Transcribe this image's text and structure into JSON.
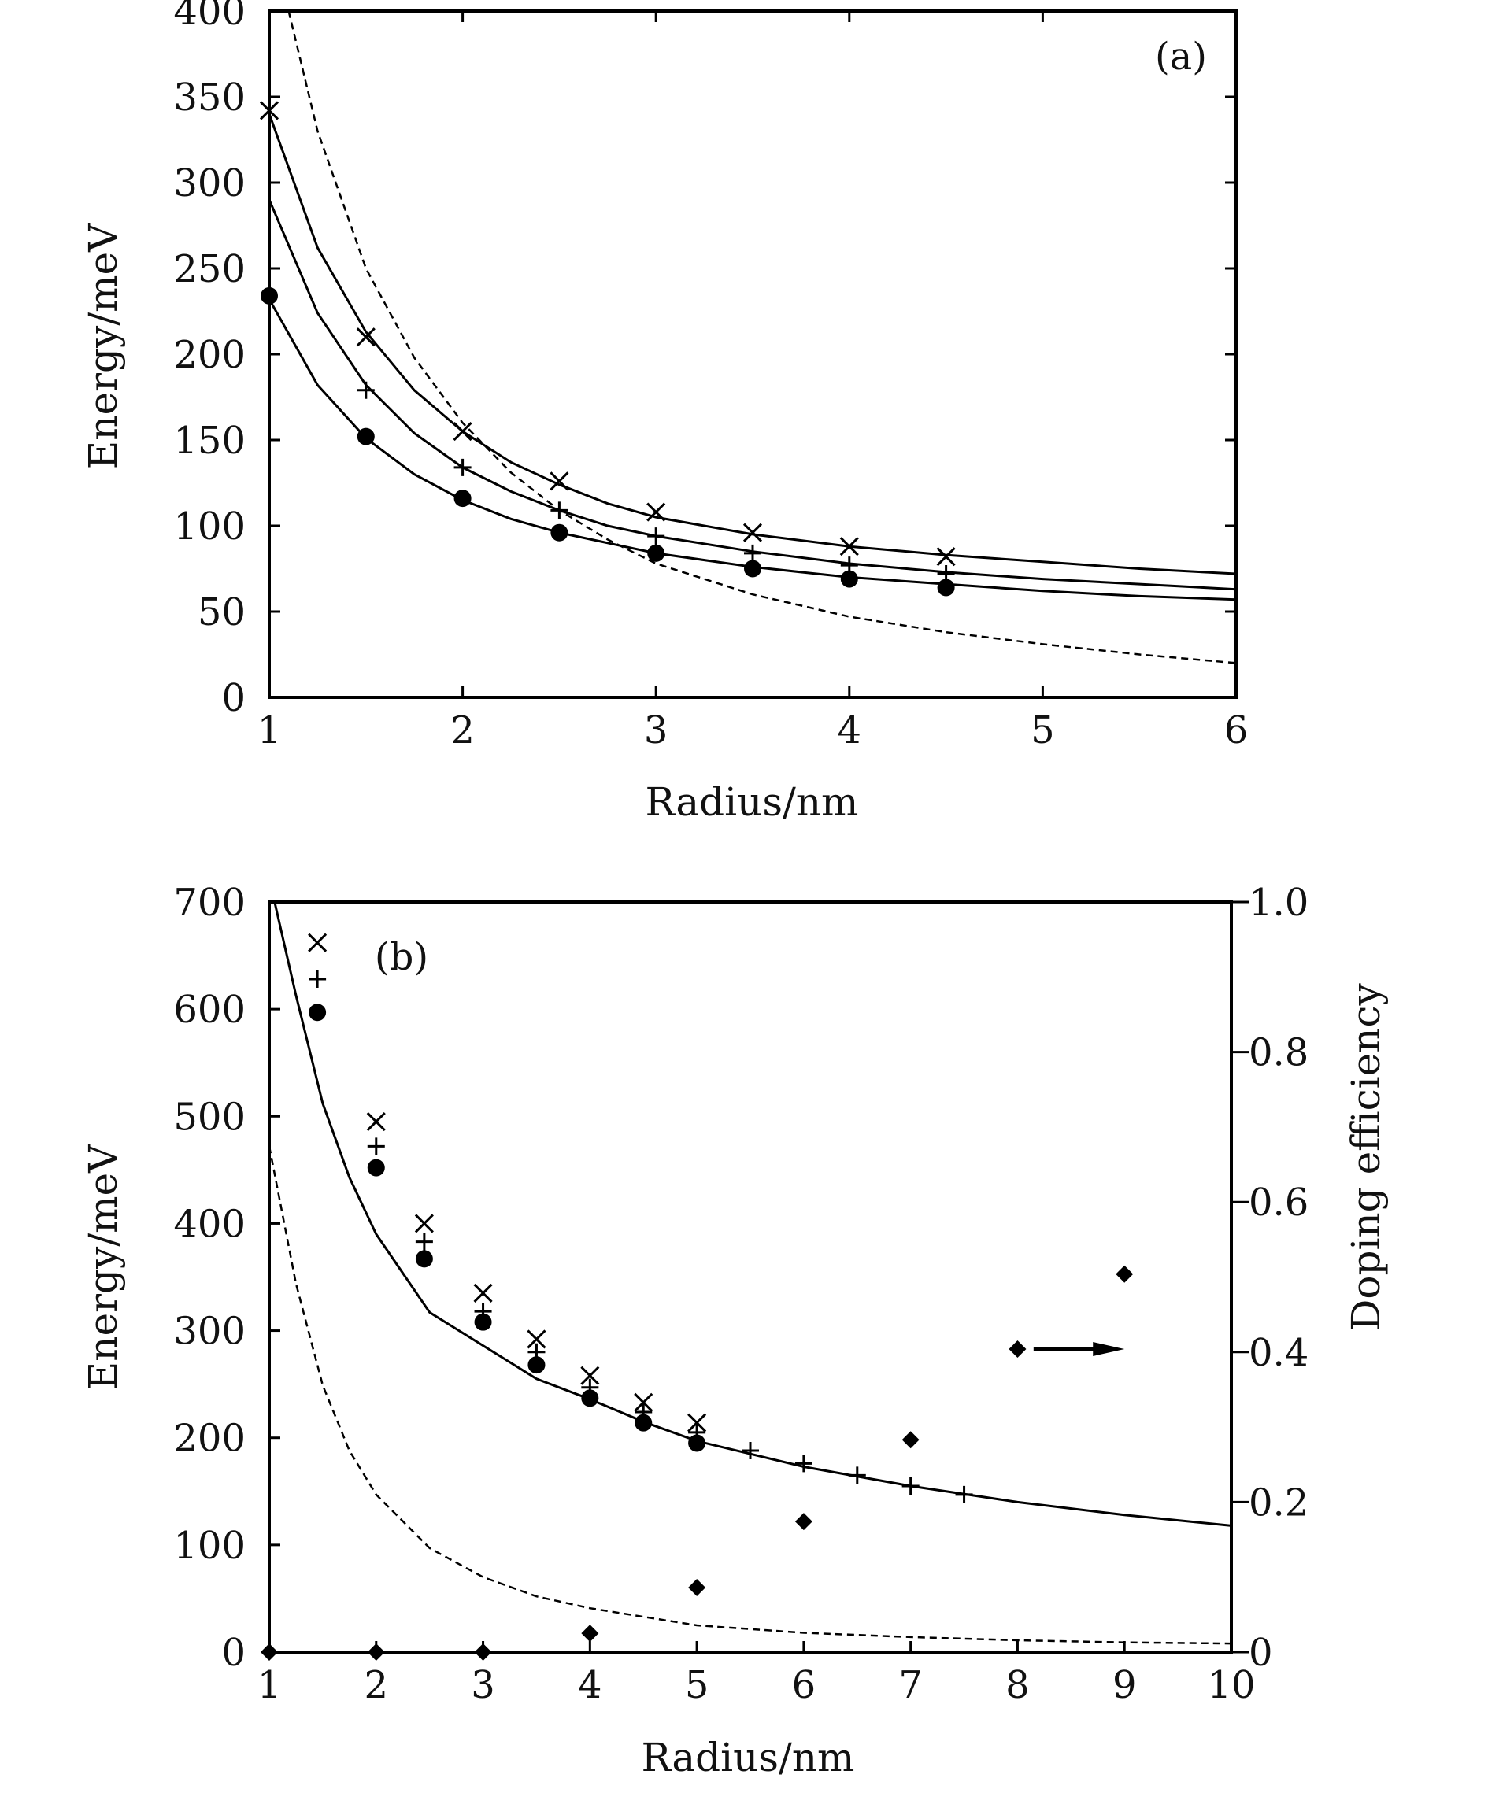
{
  "chart_data": [
    {
      "type": "scatter",
      "panel_label": "(a)",
      "xlabel": "Radius/nm",
      "ylabel": "Energy/meV",
      "xlim": [
        1,
        6
      ],
      "ylim": [
        0,
        400
      ],
      "xticks": [
        1,
        2,
        3,
        4,
        5,
        6
      ],
      "yticks": [
        0,
        50,
        100,
        150,
        200,
        250,
        300,
        350,
        400
      ],
      "grid": false,
      "series": [
        {
          "marker": "x",
          "x": [
            1.0,
            1.5,
            2.0,
            2.5,
            3.0,
            3.5,
            4.0,
            4.5
          ],
          "y": [
            342,
            210,
            155,
            126,
            108,
            96,
            88,
            82
          ]
        },
        {
          "marker": "plus",
          "x": [
            1.5,
            2.0,
            2.5,
            3.0,
            3.5,
            4.0,
            4.5
          ],
          "y": [
            179,
            134,
            109,
            94,
            84,
            77,
            72
          ]
        },
        {
          "marker": "dot",
          "x": [
            1.0,
            1.5,
            2.0,
            2.5,
            3.0,
            3.5,
            4.0,
            4.5
          ],
          "y": [
            234,
            152,
            116,
            96,
            84,
            75,
            69,
            64
          ]
        },
        {
          "style": "solid",
          "curve": [
            [
              1.0,
              340
            ],
            [
              1.25,
              262
            ],
            [
              1.5,
              213
            ],
            [
              1.75,
              179
            ],
            [
              2.0,
              155
            ],
            [
              2.25,
              137
            ],
            [
              2.5,
              124
            ],
            [
              2.75,
              113
            ],
            [
              3.0,
              105
            ],
            [
              3.5,
              95
            ],
            [
              4.0,
              88
            ],
            [
              4.5,
              83
            ],
            [
              5.0,
              79
            ],
            [
              5.5,
              75
            ],
            [
              6.0,
              72
            ]
          ]
        },
        {
          "style": "solid",
          "curve": [
            [
              1.0,
              290
            ],
            [
              1.25,
              224
            ],
            [
              1.5,
              182
            ],
            [
              1.75,
              154
            ],
            [
              2.0,
              134
            ],
            [
              2.25,
              120
            ],
            [
              2.5,
              109
            ],
            [
              2.75,
              100
            ],
            [
              3.0,
              94
            ],
            [
              3.5,
              85
            ],
            [
              4.0,
              78
            ],
            [
              4.5,
              73
            ],
            [
              5.0,
              69
            ],
            [
              5.5,
              66
            ],
            [
              6.0,
              63
            ]
          ]
        },
        {
          "style": "solid",
          "curve": [
            [
              1.0,
              232
            ],
            [
              1.25,
              182
            ],
            [
              1.5,
              151
            ],
            [
              1.75,
              130
            ],
            [
              2.0,
              115
            ],
            [
              2.25,
              104
            ],
            [
              2.5,
              96
            ],
            [
              2.75,
              90
            ],
            [
              3.0,
              84
            ],
            [
              3.5,
              76
            ],
            [
              4.0,
              70
            ],
            [
              4.5,
              66
            ],
            [
              5.0,
              62
            ],
            [
              5.5,
              59
            ],
            [
              6.0,
              57
            ]
          ]
        },
        {
          "style": "dashed",
          "curve": [
            [
              1.1,
              400
            ],
            [
              1.25,
              330
            ],
            [
              1.5,
              250
            ],
            [
              1.75,
              198
            ],
            [
              2.0,
              160
            ],
            [
              2.25,
              131
            ],
            [
              2.5,
              109
            ],
            [
              2.75,
              92
            ],
            [
              3.0,
              78
            ],
            [
              3.5,
              60
            ],
            [
              4.0,
              47
            ],
            [
              4.5,
              38
            ],
            [
              5.0,
              31
            ],
            [
              5.5,
              25
            ],
            [
              6.0,
              20
            ]
          ]
        }
      ]
    },
    {
      "type": "scatter",
      "panel_label": "(b)",
      "xlabel": "Radius/nm",
      "ylabel": "Energy/meV",
      "y2label": "Doping efficiency",
      "xlim": [
        1,
        10
      ],
      "ylim": [
        0,
        700
      ],
      "y2lim": [
        0,
        1.0
      ],
      "xticks": [
        1,
        2,
        3,
        4,
        5,
        6,
        7,
        8,
        9,
        10
      ],
      "yticks": [
        0,
        100,
        200,
        300,
        400,
        500,
        600,
        700
      ],
      "y2ticks": [
        "0",
        "0.2",
        "0.4",
        "0.6",
        "0.8",
        "1.0"
      ],
      "grid": false,
      "series": [
        {
          "marker": "x",
          "x": [
            1.45,
            2.0,
            2.45,
            3.0,
            3.5,
            4.0,
            4.5,
            5.0
          ],
          "y": [
            662,
            495,
            400,
            335,
            292,
            258,
            233,
            214
          ]
        },
        {
          "marker": "plus",
          "x": [
            1.45,
            2.0,
            2.45,
            3.0,
            3.5,
            4.0,
            4.5,
            5.0,
            5.5,
            6.0,
            6.5,
            7.0,
            7.5
          ],
          "y": [
            628,
            472,
            383,
            318,
            280,
            247,
            224,
            205,
            188,
            176,
            165,
            155,
            147
          ]
        },
        {
          "marker": "dot",
          "x": [
            1.45,
            2.0,
            2.45,
            3.0,
            3.5,
            4.0,
            4.5,
            5.0
          ],
          "y": [
            597,
            452,
            367,
            308,
            268,
            237,
            214,
            195
          ]
        },
        {
          "marker": "diamond",
          "axis": "right",
          "x": [
            1.0,
            2.0,
            3.0,
            4.0,
            5.0,
            6.0,
            7.0,
            8.0,
            9.0
          ],
          "y": [
            0.0,
            0.0,
            0.0,
            0.025,
            0.086,
            0.174,
            0.283,
            0.404,
            0.504
          ]
        },
        {
          "style": "solid",
          "curve": [
            [
              1.05,
              700
            ],
            [
              1.25,
              613
            ],
            [
              1.5,
              512
            ],
            [
              1.75,
              443
            ],
            [
              2.0,
              390
            ],
            [
              2.5,
              317
            ],
            [
              3.0,
              286
            ],
            [
              3.5,
              255
            ],
            [
              4.0,
              236
            ],
            [
              4.5,
              215
            ],
            [
              5.0,
              197
            ],
            [
              6.0,
              173
            ],
            [
              7.0,
              155
            ],
            [
              8.0,
              140
            ],
            [
              9.0,
              128
            ],
            [
              10.0,
              118
            ]
          ]
        },
        {
          "style": "dashed",
          "curve": [
            [
              1.0,
              472
            ],
            [
              1.25,
              344
            ],
            [
              1.5,
              249
            ],
            [
              1.75,
              188
            ],
            [
              2.0,
              147
            ],
            [
              2.5,
              97
            ],
            [
              3.0,
              70
            ],
            [
              3.5,
              52
            ],
            [
              4.0,
              41
            ],
            [
              4.5,
              33
            ],
            [
              5.0,
              25
            ],
            [
              6.0,
              18
            ],
            [
              7.0,
              14
            ],
            [
              8.0,
              11
            ],
            [
              9.0,
              9
            ],
            [
              10.0,
              8
            ]
          ]
        }
      ],
      "annotations": [
        {
          "type": "arrow",
          "axis": "right",
          "x_from": 8.15,
          "x_to": 9.0,
          "y": 0.404
        }
      ]
    }
  ]
}
